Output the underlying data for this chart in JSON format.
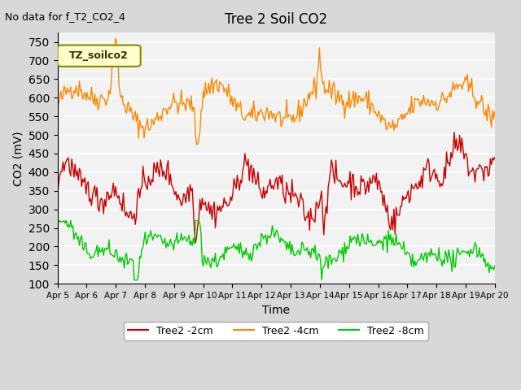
{
  "title": "Tree 2 Soil CO2",
  "no_data_text": "No data for f_T2_CO2_4",
  "ylabel": "CO2 (mV)",
  "xlabel": "Time",
  "legend_label": "TZ_soilco2",
  "ylim": [
    100,
    775
  ],
  "yticks": [
    100,
    150,
    200,
    250,
    300,
    350,
    400,
    450,
    500,
    550,
    600,
    650,
    700,
    750
  ],
  "line_colors": {
    "2cm": "#cc0000",
    "4cm": "#ff8800",
    "8cm": "#00cc00"
  },
  "legend_entries": [
    "Tree2 -2cm",
    "Tree2 -4cm",
    "Tree2 -8cm"
  ],
  "background_color": "#d8d8d8",
  "plot_bg_color": "#f2f2f2",
  "grid_color": "#ffffff"
}
